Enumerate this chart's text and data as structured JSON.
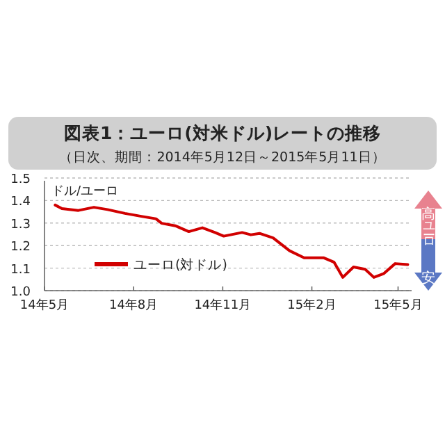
{
  "chart_data": {
    "type": "line",
    "title": "図表1：ユーロ(対米ドル)レートの推移",
    "subtitle": "（日次、期間：2014年5月12日～2015年5月11日）",
    "ylabel": "ドル/ユーロ",
    "annotations": [
      "高",
      "ユーロ",
      "安"
    ],
    "x": [
      "2014-05-12",
      "2014-05-19",
      "2014-06-05",
      "2014-06-21",
      "2014-07-05",
      "2014-07-23",
      "2014-08-10",
      "2014-08-24",
      "2014-08-30",
      "2014-09-13",
      "2014-09-27",
      "2014-10-11",
      "2014-10-24",
      "2014-11-02",
      "2014-11-21",
      "2014-11-30",
      "2014-12-09",
      "2014-12-23",
      "2015-01-09",
      "2015-01-24",
      "2015-02-13",
      "2015-02-24",
      "2015-03-05",
      "2015-03-16",
      "2015-03-28",
      "2015-04-06",
      "2015-04-16",
      "2015-04-28",
      "2015-05-11"
    ],
    "series": [
      {
        "name": "ユーロ(対ドル)",
        "color": "#d10000",
        "values": [
          1.38,
          1.364,
          1.356,
          1.37,
          1.36,
          1.343,
          1.329,
          1.319,
          1.299,
          1.288,
          1.262,
          1.279,
          1.258,
          1.242,
          1.258,
          1.248,
          1.254,
          1.234,
          1.177,
          1.146,
          1.146,
          1.126,
          1.059,
          1.105,
          1.095,
          1.059,
          1.075,
          1.12,
          1.116
        ]
      }
    ],
    "xlim": [
      "2014-05-01",
      "2015-05-15"
    ],
    "xticks": [
      {
        "value": "2014-05-01",
        "label": "14年5月"
      },
      {
        "value": "2014-08-01",
        "label": "14年8月"
      },
      {
        "value": "2014-11-01",
        "label": "14年11月"
      },
      {
        "value": "2015-02-01",
        "label": "15年2月"
      },
      {
        "value": "2015-05-01",
        "label": "15年5月"
      }
    ],
    "ylim": [
      1.0,
      1.5
    ],
    "yticks": [
      {
        "value": 1.0,
        "label": "1.0"
      },
      1.1,
      1.2,
      1.3,
      1.4,
      1.5
    ],
    "grid": "y",
    "legend": "bottom left",
    "line_style": "solid",
    "marker": "none"
  }
}
